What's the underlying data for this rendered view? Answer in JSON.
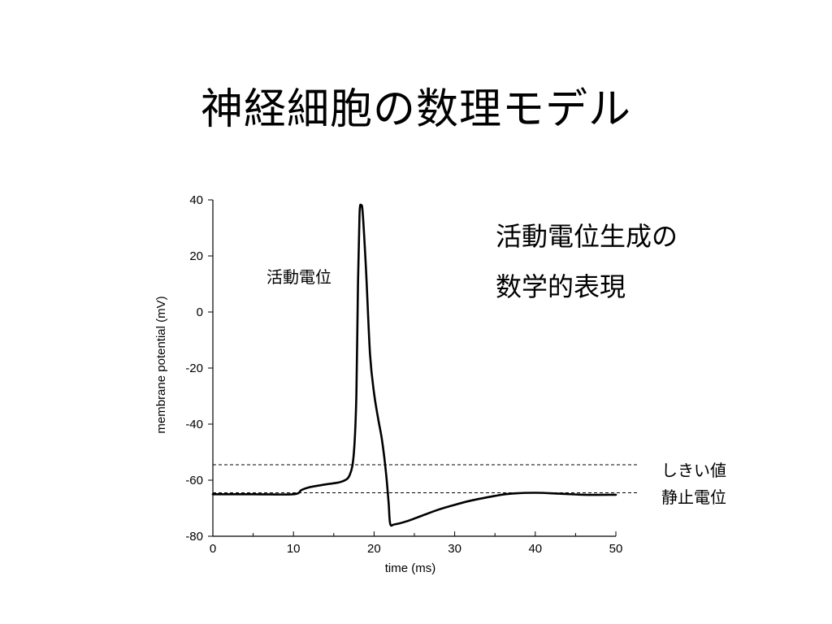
{
  "slide": {
    "title": "神経細胞の数理モデル",
    "subtitle_line1": "活動電位生成の",
    "subtitle_line2": "数学的表現"
  },
  "annotations": {
    "action_potential": "活動電位",
    "threshold": "しきい値",
    "resting_potential": "静止電位"
  },
  "chart_data": {
    "type": "line",
    "title": "",
    "xlabel": "time (ms)",
    "ylabel": "membrane potential (mV)",
    "xlim": [
      0,
      50
    ],
    "ylim": [
      -80,
      40
    ],
    "xticks": [
      0,
      10,
      20,
      30,
      40,
      50
    ],
    "yticks": [
      40,
      20,
      0,
      -20,
      -40,
      -60,
      -80
    ],
    "grid": false,
    "threshold_mv": -54.5,
    "resting_mv": -64.5,
    "series": [
      {
        "x": [
          0,
          5,
          10,
          11,
          12,
          14,
          16,
          17,
          17.5,
          17.8,
          18.0,
          18.2,
          18.4,
          18.6,
          19.0,
          19.5,
          20.0,
          20.5,
          21.0,
          21.5,
          21.8,
          22.0,
          22.5,
          24,
          26,
          28,
          30,
          32,
          35,
          37,
          40,
          43,
          46,
          50
        ],
        "y": [
          -65,
          -65,
          -65,
          -63.5,
          -62.5,
          -61.5,
          -60.5,
          -58,
          -50,
          -30,
          10,
          35,
          38,
          35,
          15,
          -15,
          -29,
          -38,
          -46,
          -58,
          -68,
          -75.5,
          -75.8,
          -74.7,
          -72.6,
          -70.5,
          -68.8,
          -67.3,
          -65.6,
          -64.8,
          -64.5,
          -64.8,
          -65.2,
          -65.2
        ]
      }
    ]
  }
}
